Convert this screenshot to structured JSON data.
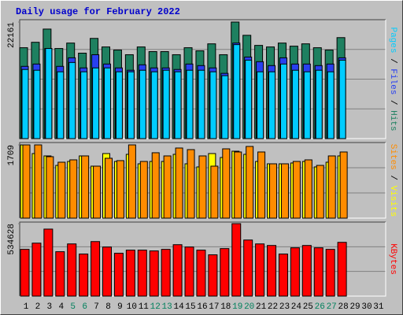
{
  "chart_data": {
    "type": "bar",
    "title": "Daily usage for February 2022",
    "categories": [
      1,
      2,
      3,
      4,
      5,
      6,
      7,
      8,
      9,
      10,
      11,
      12,
      13,
      14,
      15,
      16,
      17,
      18,
      19,
      20,
      21,
      22,
      23,
      24,
      25,
      26,
      27,
      28,
      29,
      30,
      31
    ],
    "category_colors": [
      "#000000",
      "#000000",
      "#000000",
      "#000000",
      "#00805c",
      "#00805c",
      "#000000",
      "#000000",
      "#000000",
      "#000000",
      "#000000",
      "#00805c",
      "#00805c",
      "#000000",
      "#000000",
      "#000000",
      "#000000",
      "#000000",
      "#00805c",
      "#00805c",
      "#000000",
      "#000000",
      "#000000",
      "#000000",
      "#000000",
      "#00805c",
      "#00805c",
      "#000000",
      "#000000",
      "#000000",
      "#000000"
    ],
    "legend_separator": " / ",
    "panels": [
      {
        "ylim": [
          0,
          22161
        ],
        "yticks": [
          22161
        ],
        "series": [
          {
            "name": "Hits",
            "color": "#1e8060",
            "values": [
              17280,
              18315,
              20826,
              17134,
              18168,
              16247,
              19054,
              17429,
              16838,
              15952,
              17429,
              16542,
              16542,
              15952,
              17281,
              16690,
              18020,
              15952,
              22161,
              19644,
              17724,
              17429,
              18168,
              17576,
              18020,
              17281,
              16838,
              19201,
              null,
              null,
              null
            ]
          },
          {
            "name": "Files",
            "color": "#2840f0",
            "values": [
              13736,
              14179,
              17134,
              13736,
              15361,
              13441,
              15952,
              14179,
              13441,
              12998,
              14032,
              13441,
              13441,
              13145,
              14179,
              13884,
              13441,
              12407,
              18168,
              15509,
              14622,
              13884,
              15361,
              14179,
              14179,
              13884,
              14179,
              15361,
              null,
              null,
              null
            ]
          },
          {
            "name": "Pages",
            "color": "#00ccff",
            "values": [
              13145,
              12998,
              17134,
              12702,
              14475,
              12702,
              13441,
              13441,
              12702,
              12702,
              12998,
              12702,
              12998,
              12702,
              12998,
              12998,
              12702,
              11964,
              17872,
              14918,
              12702,
              12702,
              14179,
              12998,
              12702,
              12998,
              12702,
              14918,
              null,
              null,
              null
            ]
          }
        ]
      },
      {
        "ylim": [
          0,
          1709
        ],
        "yticks": [
          1709
        ],
        "series": [
          {
            "name": "Visits",
            "color": "#ffff00",
            "values": [
              1709,
              1507,
              1452,
              1231,
              1323,
              1452,
              1213,
              1507,
              1323,
              1489,
              1268,
              1323,
              1323,
              1489,
              1268,
              1195,
              1507,
              1415,
              1562,
              1489,
              1323,
              1268,
              1268,
              1287,
              1323,
              1195,
              1305,
              1452,
              null,
              null,
              null
            ]
          },
          {
            "name": "Sites",
            "color": "#ff8c00",
            "values": [
              1709,
              1709,
              1434,
              1305,
              1360,
              1452,
              1213,
              1397,
              1342,
              1709,
              1323,
              1526,
              1452,
              1636,
              1599,
              1452,
              1213,
              1617,
              1544,
              1673,
              1544,
              1268,
              1268,
              1323,
              1360,
              1231,
              1452,
              1544,
              null,
              null,
              null
            ]
          }
        ]
      },
      {
        "ylim": [
          0,
          534628
        ],
        "yticks": [
          534628
        ],
        "series": [
          {
            "name": "KBytes",
            "color": "#ff0000",
            "values": [
              344940,
              390932,
              494414,
              327693,
              385183,
              310446,
              402430,
              362187,
              316195,
              339191,
              339191,
              333442,
              344940,
              379434,
              362187,
              339191,
              304697,
              350689,
              534628,
              413928,
              385183,
              373685,
              310446,
              356438,
              373685,
              356438,
              344940,
              396681,
              null,
              null,
              null
            ]
          }
        ]
      }
    ]
  }
}
